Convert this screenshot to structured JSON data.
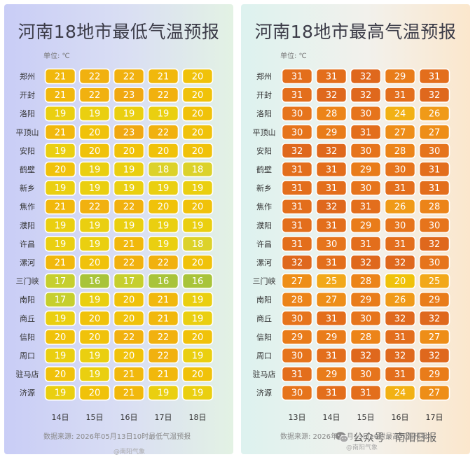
{
  "left": {
    "title": "河南18地市最低气温预报",
    "unit": "单位: ℃",
    "source": "数据来源: 2026年05月13日10时最低气温预报",
    "watermark": "@南阳气象"
  },
  "right": {
    "title": "河南18地市最高气温预报",
    "unit": "单位: ℃",
    "source": "数据来源: 2026年05月13日10时最高气温预报",
    "watermark": "@南阳气象"
  },
  "wechat": {
    "text": "公众号 · 南阳日报",
    "icon": "wechat-icon"
  },
  "chart_data": [
    {
      "type": "heatmap",
      "title": "河南18地市最低气温预报",
      "unit": "℃",
      "x": [
        "14日",
        "15日",
        "16日",
        "17日",
        "18日"
      ],
      "y": [
        "郑州",
        "开封",
        "洛阳",
        "平顶山",
        "安阳",
        "鹤壁",
        "新乡",
        "焦作",
        "濮阳",
        "许昌",
        "漯河",
        "三门峡",
        "南阳",
        "商丘",
        "信阳",
        "周口",
        "驻马店",
        "济源"
      ],
      "values": [
        [
          21,
          22,
          22,
          21,
          20
        ],
        [
          21,
          22,
          23,
          22,
          20
        ],
        [
          19,
          19,
          19,
          19,
          20
        ],
        [
          21,
          20,
          23,
          22,
          20
        ],
        [
          19,
          20,
          20,
          20,
          20
        ],
        [
          20,
          19,
          19,
          18,
          18
        ],
        [
          19,
          19,
          19,
          19,
          19
        ],
        [
          21,
          22,
          22,
          20,
          20
        ],
        [
          19,
          19,
          19,
          19,
          19
        ],
        [
          19,
          19,
          21,
          19,
          18
        ],
        [
          21,
          20,
          22,
          22,
          20
        ],
        [
          17,
          16,
          17,
          16,
          16
        ],
        [
          17,
          19,
          20,
          21,
          19
        ],
        [
          19,
          20,
          20,
          21,
          19
        ],
        [
          20,
          20,
          22,
          22,
          20
        ],
        [
          19,
          19,
          20,
          22,
          19
        ],
        [
          20,
          19,
          21,
          21,
          20
        ],
        [
          19,
          20,
          21,
          19,
          19
        ]
      ],
      "colors": {
        "16": "#a8c43a",
        "17": "#c6cf2e",
        "18": "#dcd22a",
        "19": "#eacf10",
        "20": "#f0c20a",
        "21": "#f1b80c",
        "22": "#f1b10f",
        "23": "#f0a812"
      }
    },
    {
      "type": "heatmap",
      "title": "河南18地市最高气温预报",
      "unit": "℃",
      "x": [
        "13日",
        "14日",
        "15日",
        "16日",
        "17日"
      ],
      "y": [
        "郑州",
        "开封",
        "洛阳",
        "平顶山",
        "安阳",
        "鹤壁",
        "新乡",
        "焦作",
        "濮阳",
        "许昌",
        "漯河",
        "三门峡",
        "南阳",
        "商丘",
        "信阳",
        "周口",
        "驻马店",
        "济源"
      ],
      "values": [
        [
          31,
          31,
          32,
          29,
          31
        ],
        [
          31,
          32,
          32,
          31,
          32
        ],
        [
          30,
          28,
          30,
          24,
          26
        ],
        [
          30,
          29,
          31,
          27,
          27
        ],
        [
          32,
          32,
          30,
          28,
          30
        ],
        [
          31,
          31,
          29,
          30,
          31
        ],
        [
          31,
          31,
          30,
          31,
          31
        ],
        [
          31,
          32,
          31,
          26,
          28
        ],
        [
          31,
          31,
          29,
          30,
          30
        ],
        [
          31,
          30,
          31,
          31,
          32
        ],
        [
          32,
          31,
          32,
          32,
          30
        ],
        [
          27,
          25,
          28,
          20,
          25
        ],
        [
          28,
          27,
          29,
          26,
          29
        ],
        [
          30,
          31,
          30,
          32,
          32
        ],
        [
          29,
          29,
          28,
          31,
          27
        ],
        [
          30,
          31,
          32,
          32,
          32
        ],
        [
          31,
          29,
          30,
          31,
          29
        ],
        [
          30,
          31,
          31,
          24,
          27
        ]
      ],
      "colors": {
        "20": "#f0c20a",
        "24": "#f2b114",
        "25": "#f2a81a",
        "26": "#f09a18",
        "27": "#ee8e18",
        "28": "#ec8419",
        "29": "#e97c1a",
        "30": "#e6741c",
        "31": "#e36e1c",
        "32": "#df681d"
      }
    }
  ]
}
